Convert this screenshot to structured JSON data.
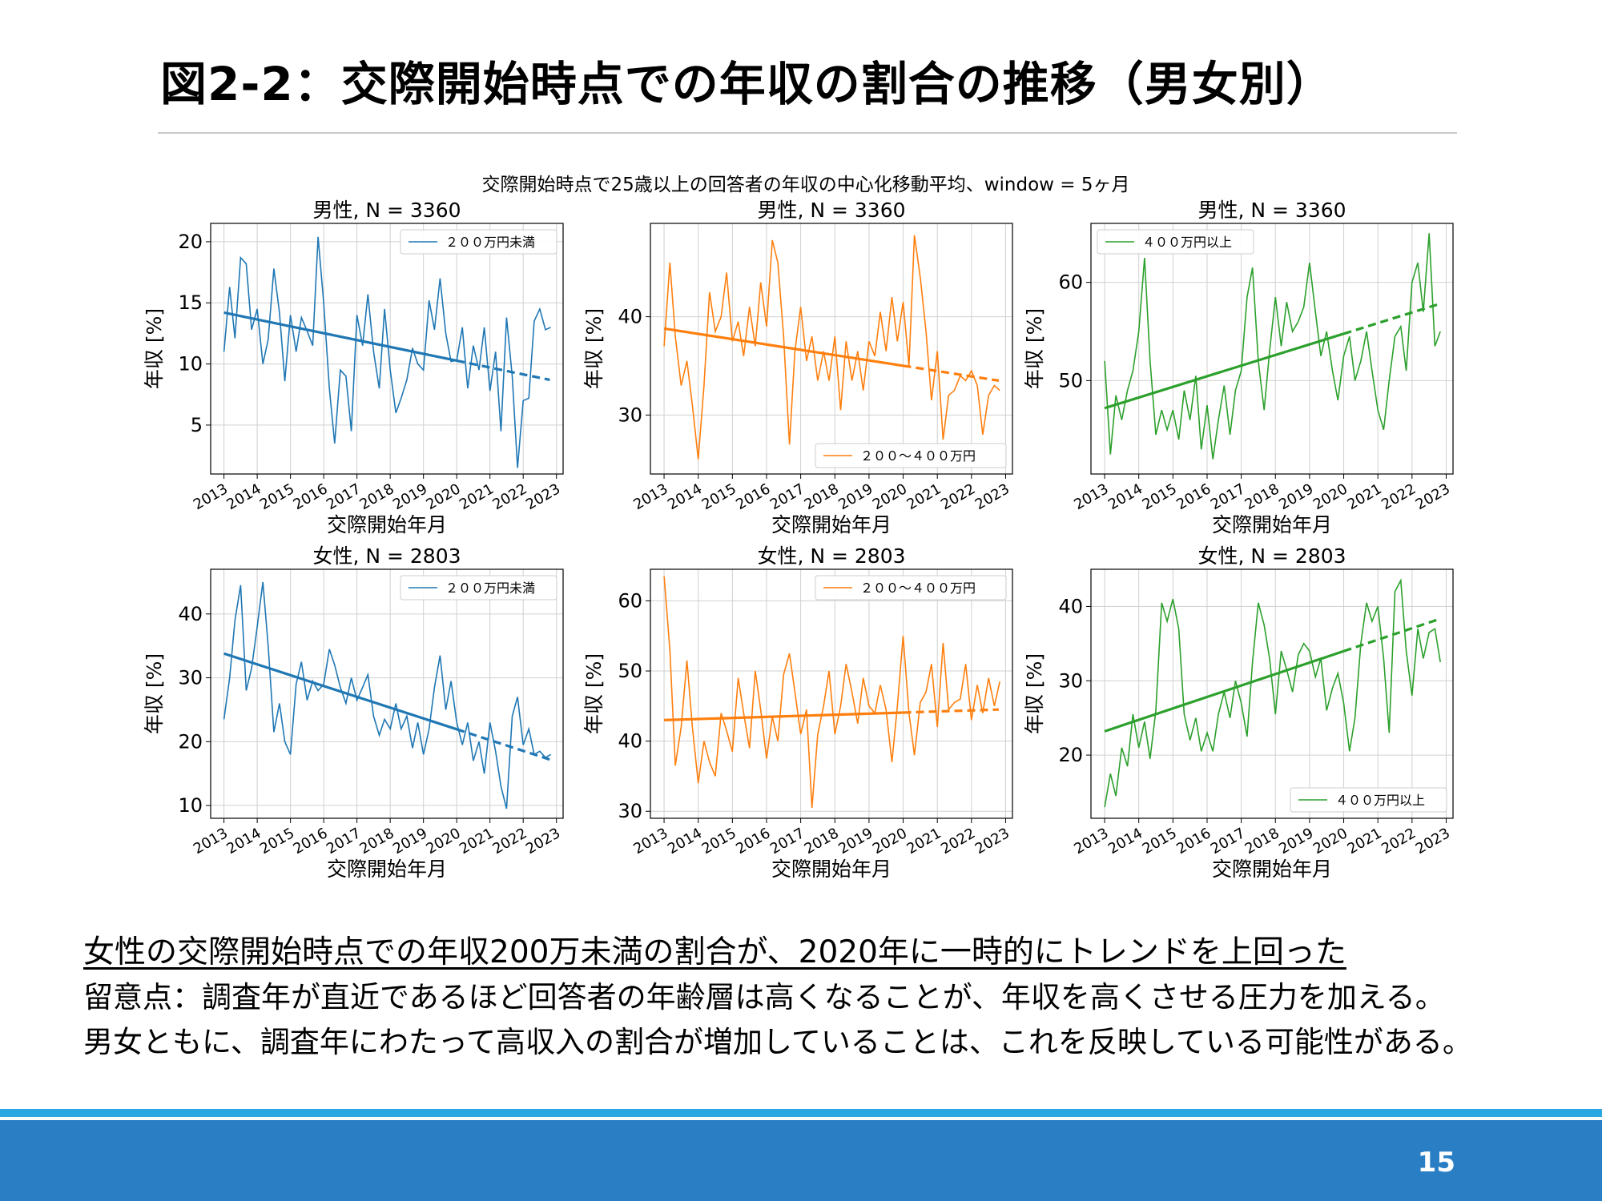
{
  "slide": {
    "title": "図2-2：交際開始時点での年収の割合の推移（男女別）",
    "page_number": "15"
  },
  "notes": {
    "headline": "女性の交際開始時点での年収200万未満の割合が、2020年に一時的にトレンドを上回った",
    "line1": "留意点：調査年が直近であるほど回答者の年齢層は高くなることが、年収を高くさせる圧力を加える。",
    "line2": "男女ともに、調査年にわたって高収入の割合が増加していることは、これを反映している可能性がある。"
  },
  "colors": {
    "series_under200": "#1f77b4",
    "series_200to400": "#ff7f0e",
    "series_over400": "#2ca02c",
    "grid": "#d0d0d0",
    "footer_bar": "#2a7fc4",
    "footer_stripe": "#29a7e1"
  },
  "chart_data": {
    "suptitle": "交際開始時点で25歳以上の回答者の年収の中心化移動平均、window = 5ヶ月",
    "xlabel": "交際開始年月",
    "ylabel": "年収 [%]",
    "x_ticks": [
      "2013",
      "2014",
      "2015",
      "2016",
      "2017",
      "2018",
      "2019",
      "2020",
      "2021",
      "2022",
      "2023"
    ],
    "panels": [
      {
        "type": "line",
        "title": "男性, N = 3360",
        "legend": "２００万円未満",
        "legend_position": "upper right",
        "color": "#1f77b4",
        "xlim": [
          2012.6,
          2023.2
        ],
        "ylim": [
          1,
          21.5
        ],
        "yticks": [
          5,
          10,
          15,
          20
        ],
        "trend": {
          "x_start": 2013,
          "y_start": 14.2,
          "x_end": 2022.8,
          "y_end": 8.7,
          "dashed_from": 2020.0
        },
        "x": [
          2013.0,
          2013.17,
          2013.33,
          2013.5,
          2013.67,
          2013.83,
          2014.0,
          2014.17,
          2014.33,
          2014.5,
          2014.67,
          2014.83,
          2015.0,
          2015.17,
          2015.33,
          2015.5,
          2015.67,
          2015.83,
          2016.0,
          2016.17,
          2016.33,
          2016.5,
          2016.67,
          2016.83,
          2017.0,
          2017.17,
          2017.33,
          2017.5,
          2017.67,
          2017.83,
          2018.0,
          2018.17,
          2018.33,
          2018.5,
          2018.67,
          2018.83,
          2019.0,
          2019.17,
          2019.33,
          2019.5,
          2019.67,
          2019.83,
          2020.0,
          2020.17,
          2020.33,
          2020.5,
          2020.67,
          2020.83,
          2021.0,
          2021.17,
          2021.33,
          2021.5,
          2021.67,
          2021.83,
          2022.0,
          2022.17,
          2022.33,
          2022.5,
          2022.67,
          2022.83
        ],
        "values": [
          11.0,
          16.3,
          12.1,
          18.7,
          18.2,
          12.8,
          14.5,
          10.0,
          12.0,
          17.8,
          14.2,
          8.6,
          14.0,
          11.0,
          13.8,
          12.7,
          11.5,
          20.4,
          15.0,
          8.0,
          3.5,
          9.5,
          9.0,
          4.5,
          14.0,
          11.5,
          15.7,
          11.0,
          8.0,
          14.5,
          9.5,
          6.0,
          7.2,
          8.7,
          11.3,
          10.0,
          9.5,
          15.2,
          12.8,
          17.0,
          12.5,
          10.2,
          10.3,
          13.0,
          8.0,
          11.5,
          9.5,
          13.0,
          7.8,
          11.0,
          4.5,
          13.8,
          9.0,
          1.5,
          7.0,
          7.2,
          13.5,
          14.5,
          12.8,
          13.0
        ]
      },
      {
        "type": "line",
        "title": "男性, N = 3360",
        "legend": "２００～４００万円",
        "legend_position": "lower right",
        "color": "#ff7f0e",
        "xlim": [
          2012.6,
          2023.2
        ],
        "ylim": [
          24,
          49.5
        ],
        "yticks": [
          30,
          40
        ],
        "trend": {
          "x_start": 2013,
          "y_start": 38.8,
          "x_end": 2022.8,
          "y_end": 33.5,
          "dashed_from": 2020.0
        },
        "x": [
          2013.0,
          2013.17,
          2013.33,
          2013.5,
          2013.67,
          2013.83,
          2014.0,
          2014.17,
          2014.33,
          2014.5,
          2014.67,
          2014.83,
          2015.0,
          2015.17,
          2015.33,
          2015.5,
          2015.67,
          2015.83,
          2016.0,
          2016.17,
          2016.33,
          2016.5,
          2016.67,
          2016.83,
          2017.0,
          2017.17,
          2017.33,
          2017.5,
          2017.67,
          2017.83,
          2018.0,
          2018.17,
          2018.33,
          2018.5,
          2018.67,
          2018.83,
          2019.0,
          2019.17,
          2019.33,
          2019.5,
          2019.67,
          2019.83,
          2020.0,
          2020.17,
          2020.33,
          2020.5,
          2020.67,
          2020.83,
          2021.0,
          2021.17,
          2021.33,
          2021.5,
          2021.67,
          2021.83,
          2022.0,
          2022.17,
          2022.33,
          2022.5,
          2022.67,
          2022.83
        ],
        "values": [
          37.0,
          45.5,
          38.0,
          33.0,
          35.5,
          31.0,
          25.5,
          33.0,
          42.5,
          38.5,
          40.0,
          44.5,
          37.5,
          39.5,
          36.0,
          41.0,
          37.0,
          43.5,
          39.0,
          47.8,
          45.5,
          38.0,
          27.0,
          36.5,
          41.0,
          35.5,
          38.0,
          33.5,
          36.5,
          33.5,
          38.0,
          30.5,
          37.5,
          33.5,
          36.5,
          32.5,
          37.5,
          36.0,
          40.5,
          36.5,
          42.0,
          37.5,
          41.5,
          35.0,
          48.3,
          44.0,
          38.5,
          31.5,
          36.5,
          27.5,
          32.0,
          32.5,
          34.0,
          33.5,
          34.5,
          33.0,
          28.0,
          32.0,
          33.0,
          32.5
        ]
      },
      {
        "type": "line",
        "title": "男性, N = 3360",
        "legend": "４００万円以上",
        "legend_position": "upper left",
        "color": "#2ca02c",
        "xlim": [
          2012.6,
          2023.2
        ],
        "ylim": [
          40.5,
          66
        ],
        "yticks": [
          50,
          60
        ],
        "trend": {
          "x_start": 2013,
          "y_start": 47.2,
          "x_end": 2022.8,
          "y_end": 57.8,
          "dashed_from": 2020.0
        },
        "x": [
          2013.0,
          2013.17,
          2013.33,
          2013.5,
          2013.67,
          2013.83,
          2014.0,
          2014.17,
          2014.33,
          2014.5,
          2014.67,
          2014.83,
          2015.0,
          2015.17,
          2015.33,
          2015.5,
          2015.67,
          2015.83,
          2016.0,
          2016.17,
          2016.33,
          2016.5,
          2016.67,
          2016.83,
          2017.0,
          2017.17,
          2017.33,
          2017.5,
          2017.67,
          2017.83,
          2018.0,
          2018.17,
          2018.33,
          2018.5,
          2018.67,
          2018.83,
          2019.0,
          2019.17,
          2019.33,
          2019.5,
          2019.67,
          2019.83,
          2020.0,
          2020.17,
          2020.33,
          2020.5,
          2020.67,
          2020.83,
          2021.0,
          2021.17,
          2021.33,
          2021.5,
          2021.67,
          2021.83,
          2022.0,
          2022.17,
          2022.33,
          2022.5,
          2022.67,
          2022.83
        ],
        "values": [
          52.0,
          42.5,
          48.5,
          46.0,
          49.0,
          51.0,
          55.0,
          62.5,
          52.0,
          44.5,
          47.0,
          45.0,
          47.0,
          44.0,
          49.0,
          46.0,
          50.5,
          43.0,
          47.5,
          42.0,
          46.0,
          49.5,
          44.5,
          49.0,
          51.0,
          58.5,
          61.5,
          52.0,
          47.0,
          53.0,
          58.5,
          53.5,
          58.0,
          55.0,
          56.0,
          57.5,
          62.0,
          57.0,
          52.5,
          55.0,
          51.0,
          48.0,
          52.5,
          54.5,
          50.0,
          52.0,
          55.0,
          51.0,
          47.0,
          45.0,
          50.0,
          54.5,
          55.5,
          51.0,
          60.0,
          62.0,
          57.0,
          65.0,
          53.5,
          55.0
        ]
      },
      {
        "type": "line",
        "title": "女性, N = 2803",
        "legend": "２００万円未満",
        "legend_position": "upper right",
        "color": "#1f77b4",
        "xlim": [
          2012.6,
          2023.2
        ],
        "ylim": [
          8,
          47
        ],
        "yticks": [
          10,
          20,
          30,
          40
        ],
        "trend": {
          "x_start": 2013,
          "y_start": 33.8,
          "x_end": 2022.8,
          "y_end": 17.2,
          "dashed_from": 2020.0
        },
        "x": [
          2013.0,
          2013.17,
          2013.33,
          2013.5,
          2013.67,
          2013.83,
          2014.0,
          2014.17,
          2014.33,
          2014.5,
          2014.67,
          2014.83,
          2015.0,
          2015.17,
          2015.33,
          2015.5,
          2015.67,
          2015.83,
          2016.0,
          2016.17,
          2016.33,
          2016.5,
          2016.67,
          2016.83,
          2017.0,
          2017.17,
          2017.33,
          2017.5,
          2017.67,
          2017.83,
          2018.0,
          2018.17,
          2018.33,
          2018.5,
          2018.67,
          2018.83,
          2019.0,
          2019.17,
          2019.33,
          2019.5,
          2019.67,
          2019.83,
          2020.0,
          2020.17,
          2020.33,
          2020.5,
          2020.67,
          2020.83,
          2021.0,
          2021.17,
          2021.33,
          2021.5,
          2021.67,
          2021.83,
          2022.0,
          2022.17,
          2022.33,
          2022.5,
          2022.67,
          2022.83
        ],
        "values": [
          23.5,
          30.0,
          39.0,
          44.5,
          28.0,
          31.5,
          38.0,
          45.0,
          35.0,
          21.5,
          26.0,
          20.0,
          18.0,
          29.0,
          32.5,
          26.5,
          29.5,
          28.0,
          29.0,
          34.5,
          32.0,
          28.5,
          26.0,
          30.0,
          26.5,
          28.5,
          30.5,
          24.0,
          21.0,
          23.5,
          22.0,
          26.0,
          22.0,
          24.0,
          19.0,
          23.0,
          18.0,
          22.0,
          28.5,
          33.5,
          25.0,
          29.5,
          23.0,
          19.5,
          23.0,
          17.0,
          20.0,
          15.0,
          23.0,
          18.5,
          13.0,
          9.5,
          24.0,
          27.0,
          19.5,
          22.0,
          18.0,
          18.5,
          17.5,
          18.0
        ]
      },
      {
        "type": "line",
        "title": "女性, N = 2803",
        "legend": "２００～４００万円",
        "legend_position": "upper right",
        "color": "#ff7f0e",
        "xlim": [
          2012.6,
          2023.2
        ],
        "ylim": [
          29,
          64.5
        ],
        "yticks": [
          30,
          40,
          50,
          60
        ],
        "trend": {
          "x_start": 2013,
          "y_start": 43.0,
          "x_end": 2022.8,
          "y_end": 44.5,
          "dashed_from": 2020.0
        },
        "x": [
          2013.0,
          2013.17,
          2013.33,
          2013.5,
          2013.67,
          2013.83,
          2014.0,
          2014.17,
          2014.33,
          2014.5,
          2014.67,
          2014.83,
          2015.0,
          2015.17,
          2015.33,
          2015.5,
          2015.67,
          2015.83,
          2016.0,
          2016.17,
          2016.33,
          2016.5,
          2016.67,
          2016.83,
          2017.0,
          2017.17,
          2017.33,
          2017.5,
          2017.67,
          2017.83,
          2018.0,
          2018.17,
          2018.33,
          2018.5,
          2018.67,
          2018.83,
          2019.0,
          2019.17,
          2019.33,
          2019.5,
          2019.67,
          2019.83,
          2020.0,
          2020.17,
          2020.33,
          2020.5,
          2020.67,
          2020.83,
          2021.0,
          2021.17,
          2021.33,
          2021.5,
          2021.67,
          2021.83,
          2022.0,
          2022.17,
          2022.33,
          2022.5,
          2022.67,
          2022.83
        ],
        "values": [
          63.5,
          53.0,
          36.5,
          42.0,
          51.5,
          42.0,
          34.0,
          40.0,
          37.0,
          35.0,
          44.0,
          41.5,
          38.5,
          49.0,
          44.0,
          39.0,
          50.0,
          44.5,
          37.5,
          43.5,
          40.0,
          49.5,
          52.5,
          47.0,
          41.0,
          44.5,
          30.5,
          41.0,
          45.0,
          50.0,
          41.0,
          45.0,
          51.0,
          47.0,
          42.5,
          49.0,
          45.0,
          44.0,
          48.0,
          44.5,
          37.0,
          45.0,
          55.0,
          44.0,
          38.0,
          45.5,
          47.0,
          51.0,
          42.0,
          54.0,
          44.5,
          45.5,
          46.0,
          51.0,
          43.0,
          48.0,
          44.0,
          49.0,
          45.0,
          48.5
        ]
      },
      {
        "type": "line",
        "title": "女性, N = 2803",
        "legend": "４００万円以上",
        "legend_position": "lower right",
        "color": "#2ca02c",
        "xlim": [
          2012.6,
          2023.2
        ],
        "ylim": [
          11.5,
          45
        ],
        "yticks": [
          20,
          30,
          40
        ],
        "trend": {
          "x_start": 2013,
          "y_start": 23.2,
          "x_end": 2022.8,
          "y_end": 38.3,
          "dashed_from": 2020.0
        },
        "x": [
          2013.0,
          2013.17,
          2013.33,
          2013.5,
          2013.67,
          2013.83,
          2014.0,
          2014.17,
          2014.33,
          2014.5,
          2014.67,
          2014.83,
          2015.0,
          2015.17,
          2015.33,
          2015.5,
          2015.67,
          2015.83,
          2016.0,
          2016.17,
          2016.33,
          2016.5,
          2016.67,
          2016.83,
          2017.0,
          2017.17,
          2017.33,
          2017.5,
          2017.67,
          2017.83,
          2018.0,
          2018.17,
          2018.33,
          2018.5,
          2018.67,
          2018.83,
          2019.0,
          2019.17,
          2019.33,
          2019.5,
          2019.67,
          2019.83,
          2020.0,
          2020.17,
          2020.33,
          2020.5,
          2020.67,
          2020.83,
          2021.0,
          2021.17,
          2021.33,
          2021.5,
          2021.67,
          2021.83,
          2022.0,
          2022.17,
          2022.33,
          2022.5,
          2022.67,
          2022.83
        ],
        "values": [
          13.0,
          17.5,
          14.5,
          21.0,
          18.5,
          25.5,
          21.0,
          24.5,
          19.5,
          26.0,
          40.5,
          38.0,
          41.0,
          37.0,
          25.5,
          22.0,
          25.0,
          20.5,
          23.0,
          20.5,
          25.5,
          28.5,
          25.0,
          30.0,
          27.0,
          22.5,
          32.5,
          40.5,
          37.5,
          33.0,
          25.5,
          34.0,
          31.5,
          28.5,
          33.5,
          35.0,
          34.0,
          30.5,
          33.0,
          26.0,
          29.0,
          31.0,
          27.0,
          20.5,
          25.0,
          35.0,
          40.5,
          38.0,
          40.0,
          33.0,
          23.0,
          42.0,
          43.5,
          34.0,
          28.0,
          37.0,
          33.0,
          36.5,
          37.0,
          32.5
        ]
      }
    ]
  }
}
